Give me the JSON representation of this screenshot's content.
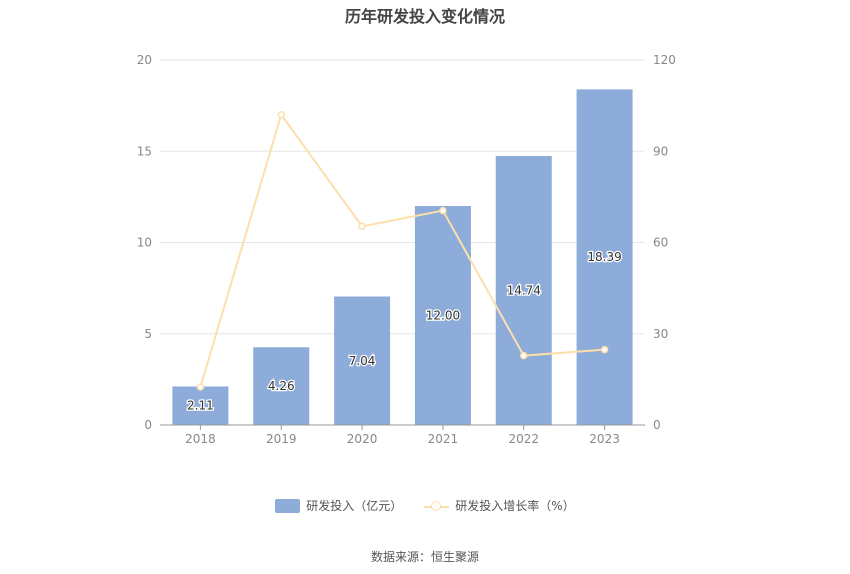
{
  "chart_data": {
    "type": "bar",
    "title": "历年研发投入变化情况",
    "categories": [
      "2018",
      "2019",
      "2020",
      "2021",
      "2022",
      "2023"
    ],
    "series": [
      {
        "name": "研发投入（亿元）",
        "type": "bar",
        "axis": "left",
        "values": [
          2.11,
          4.26,
          7.04,
          12.0,
          14.74,
          18.39
        ],
        "labels": [
          "2.11",
          "4.26",
          "7.04",
          "12.00",
          "14.74",
          "18.39"
        ],
        "color": "#8eacd9"
      },
      {
        "name": "研发投入增长率（%）",
        "type": "line",
        "axis": "right",
        "values": [
          12.5,
          102,
          65.3,
          70.5,
          22.8,
          24.8
        ],
        "color": "#fddfaa"
      }
    ],
    "y_left": {
      "min": 0,
      "max": 20,
      "ticks": [
        "0",
        "5",
        "10",
        "15",
        "20"
      ]
    },
    "y_right": {
      "min": 0,
      "max": 120,
      "ticks": [
        "0",
        "30",
        "60",
        "90",
        "120"
      ]
    },
    "grid": true,
    "legend_position": "bottom"
  },
  "source": "数据来源：恒生聚源"
}
